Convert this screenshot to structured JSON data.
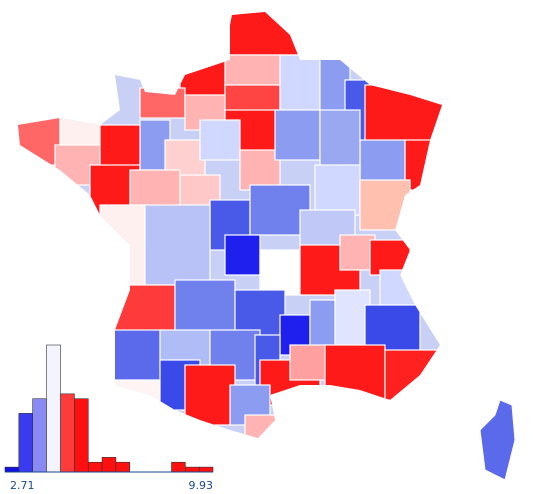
{
  "chart_data": {
    "type": "histogram",
    "bins": [
      2.71,
      3.19,
      3.67,
      4.15,
      4.64,
      5.12,
      5.6,
      6.08,
      6.56,
      7.04,
      7.52,
      8.0,
      8.49,
      8.97,
      9.45,
      9.93
    ],
    "counts": [
      1,
      12,
      15,
      26,
      16,
      15,
      2,
      3,
      2,
      0,
      0,
      0,
      2,
      1,
      1
    ],
    "colors": [
      "#1010e0",
      "#3a3af0",
      "#8a8af5",
      "#f4f4ff",
      "#ff3a3a",
      "#ff1010",
      "#ff1010",
      "#ff1010",
      "#ff1010",
      "#ff1010",
      "#ff1010",
      "#ff1010",
      "#ff1010",
      "#ff1010",
      "#ff1010"
    ]
  }
}
